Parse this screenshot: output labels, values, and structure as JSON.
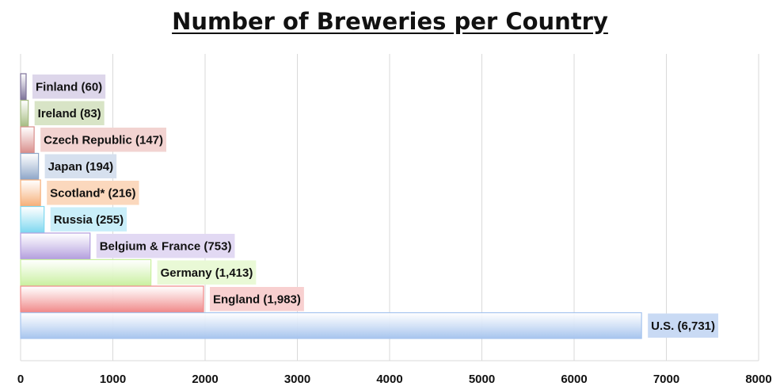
{
  "chart_data": {
    "type": "bar",
    "orientation": "horizontal",
    "title": "Number of Breweries per Country",
    "xlim": [
      0,
      8000
    ],
    "xticks": [
      0,
      1000,
      2000,
      3000,
      4000,
      5000,
      6000,
      7000,
      8000
    ],
    "grid": true,
    "categories": [
      "Finland",
      "Ireland",
      "Czech Republic",
      "Japan",
      "Scotland*",
      "Russia",
      "Belgium & France",
      "Germany",
      "England",
      "U.S."
    ],
    "values": [
      60,
      83,
      147,
      194,
      216,
      255,
      753,
      1413,
      1983,
      6731
    ],
    "labels": [
      "Finland (60)",
      "Ireland (83)",
      "Czech Republic (147)",
      "Japan (194)",
      "Scotland* (216)",
      "Russia (255)",
      "Belgium & France (753)",
      "Germany (1,413)",
      "England (1,983)",
      "U.S. (6,731)"
    ],
    "colors": {
      "bars": [
        "#7e739a",
        "#a7bd84",
        "#d98f8c",
        "#8fa7c9",
        "#f6b07a",
        "#7fd8f0",
        "#b49fde",
        "#caf0a0",
        "#f08a8a",
        "#a6c4ee"
      ],
      "label_backgrounds": [
        "#ddd6ea",
        "#d8e4c6",
        "#f2d3d1",
        "#d6e0ee",
        "#fbd8bd",
        "#c9eef9",
        "#e2d9f3",
        "#e9f9d6",
        "#f8d0d0",
        "#c9daf4"
      ]
    }
  }
}
